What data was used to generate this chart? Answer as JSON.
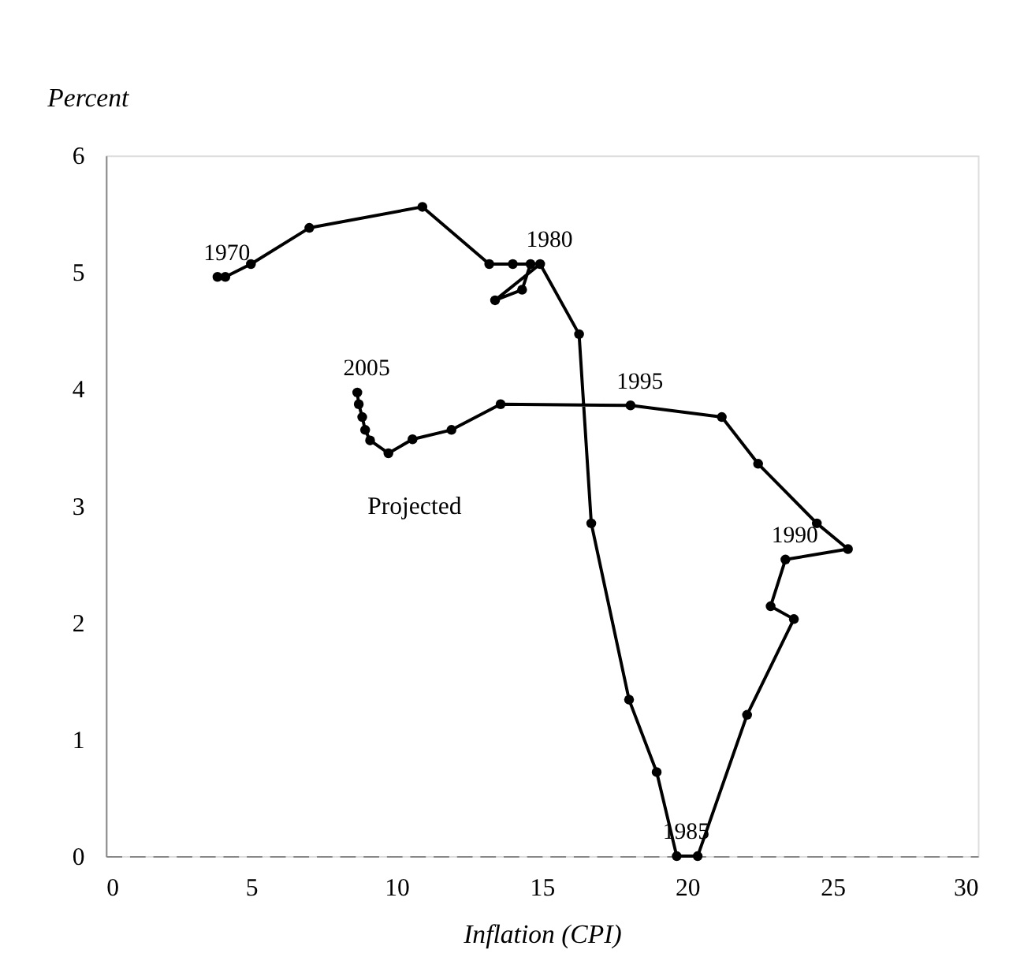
{
  "chart_data": {
    "type": "line",
    "xlabel": "Inflation (CPI)",
    "ylabel": "Percent",
    "xlim": [
      0,
      30
    ],
    "xticks": [
      0,
      5,
      10,
      15,
      20,
      25,
      30
    ],
    "ylim": [
      0,
      6
    ],
    "yticks": [
      0,
      1,
      2,
      3,
      4,
      5,
      6
    ],
    "grid": false,
    "marker": "circle",
    "line_style": "solid",
    "series": [
      {
        "color": "#000000",
        "x": [
          3.84,
          4.11,
          4.99,
          7.0,
          10.89,
          13.19,
          14.0,
          14.61,
          14.32,
          13.39,
          14.94,
          16.28,
          16.7,
          18.0,
          18.95,
          19.64,
          20.36,
          22.06,
          23.67,
          22.87,
          23.38,
          25.53,
          24.46,
          22.44,
          21.19,
          18.05,
          13.58,
          11.89,
          10.55,
          9.72,
          9.09,
          8.92,
          8.82,
          8.7,
          8.65
        ],
        "values": [
          4.96,
          4.96,
          5.07,
          5.38,
          5.56,
          5.07,
          5.07,
          5.07,
          4.85,
          4.76,
          5.07,
          4.47,
          2.85,
          1.34,
          0.72,
          0,
          0,
          1.21,
          2.03,
          2.14,
          2.54,
          2.63,
          2.85,
          3.36,
          3.76,
          3.86,
          3.87,
          3.65,
          3.57,
          3.45,
          3.56,
          3.65,
          3.76,
          3.87,
          3.97
        ]
      }
    ],
    "annotations": [
      {
        "text": "1970",
        "x": 3.84,
        "y": 4.96
      },
      {
        "text": "1980",
        "x": 14.94,
        "y": 5.07
      },
      {
        "text": "1985",
        "x": 19.64,
        "y": 0
      },
      {
        "text": "1990",
        "x": 23.38,
        "y": 2.54
      },
      {
        "text": "1995",
        "x": 18.05,
        "y": 3.86
      },
      {
        "text": "2005",
        "x": 8.65,
        "y": 3.97
      },
      "Projected"
    ]
  }
}
